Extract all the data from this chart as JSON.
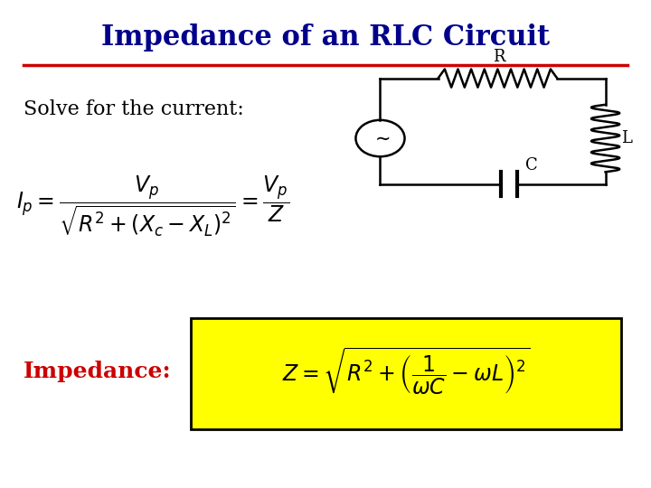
{
  "title": "Impedance of an RLC Circuit",
  "title_color": "#00008B",
  "title_fontsize": 22,
  "bg_color": "#FFFFFF",
  "separator_color": "#CC0000",
  "solve_text": "Solve for the current:",
  "solve_fontsize": 16,
  "impedance_label": "Impedance:",
  "impedance_label_color": "#CC0000",
  "impedance_label_fontsize": 18,
  "formula_fontsize": 16,
  "yellow_box_color": "#FFFF00",
  "circuit_R_label": "R",
  "circuit_C_label": "C",
  "circuit_L_label": "L"
}
